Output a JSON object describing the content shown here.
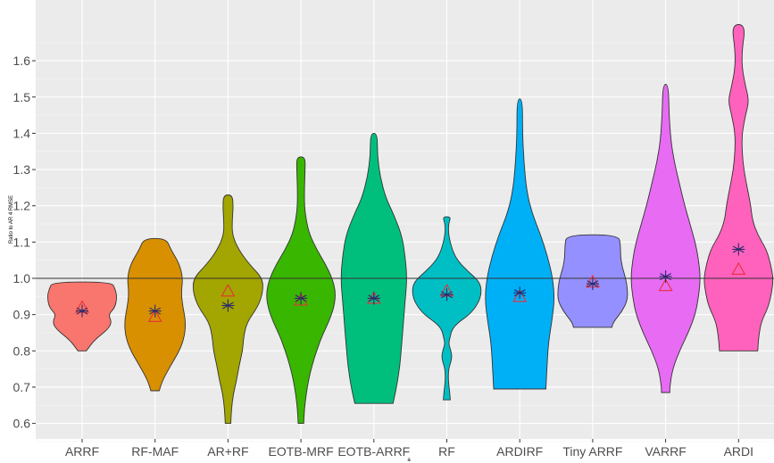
{
  "chart_data": {
    "type": "violin",
    "xlabel": "a",
    "ylabel": "Ratio to AR 4 RMSE",
    "ylim": [
      0.55,
      1.71
    ],
    "yticks": [
      0.6,
      0.7,
      0.8,
      0.9,
      1.0,
      1.1,
      1.2,
      1.3,
      1.4,
      1.5,
      1.6
    ],
    "ytick_labels": [
      "0.6",
      "0.7",
      "0.8",
      "0.9",
      "1.0",
      "1.1",
      "1.2",
      "1.3",
      "1.4",
      "1.5",
      "1.6"
    ],
    "reference_line": 1.0,
    "background": "#ebebeb",
    "grid": true,
    "categories": [
      "ARRF",
      "RF-MAF",
      "AR+RF",
      "EOTB-MRF",
      "EOTB-ARRF",
      "RF",
      "ARDIRF",
      "Tiny ARRF",
      "VARRF",
      "ARDI"
    ],
    "violins": [
      {
        "color": "#f8766d",
        "min": 0.8,
        "max": 0.99,
        "mean": 0.91,
        "median": 0.92,
        "profile": [
          [
            0.8,
            0.12
          ],
          [
            0.83,
            0.35
          ],
          [
            0.86,
            0.75
          ],
          [
            0.88,
            0.85
          ],
          [
            0.9,
            0.75
          ],
          [
            0.92,
            0.95
          ],
          [
            0.95,
            1.0
          ],
          [
            0.97,
            0.95
          ],
          [
            0.99,
            0.85
          ]
        ]
      },
      {
        "color": "#d89000",
        "min": 0.69,
        "max": 1.11,
        "mean": 0.91,
        "median": 0.895,
        "profile": [
          [
            0.69,
            0.12
          ],
          [
            0.72,
            0.22
          ],
          [
            0.76,
            0.45
          ],
          [
            0.8,
            0.7
          ],
          [
            0.84,
            0.85
          ],
          [
            0.88,
            0.88
          ],
          [
            0.92,
            0.8
          ],
          [
            0.96,
            0.75
          ],
          [
            1.0,
            0.8
          ],
          [
            1.04,
            0.7
          ],
          [
            1.08,
            0.45
          ],
          [
            1.11,
            0.32
          ]
        ]
      },
      {
        "color": "#a3a500",
        "min": 0.6,
        "max": 1.23,
        "mean": 0.925,
        "median": 0.965,
        "profile": [
          [
            0.6,
            0.08
          ],
          [
            0.64,
            0.1
          ],
          [
            0.68,
            0.15
          ],
          [
            0.72,
            0.25
          ],
          [
            0.76,
            0.32
          ],
          [
            0.8,
            0.42
          ],
          [
            0.84,
            0.45
          ],
          [
            0.88,
            0.55
          ],
          [
            0.92,
            0.85
          ],
          [
            0.96,
            1.0
          ],
          [
            1.0,
            1.0
          ],
          [
            1.04,
            0.6
          ],
          [
            1.08,
            0.3
          ],
          [
            1.12,
            0.12
          ],
          [
            1.16,
            0.12
          ],
          [
            1.2,
            0.15
          ],
          [
            1.23,
            0.12
          ]
        ]
      },
      {
        "color": "#39b600",
        "min": 0.6,
        "max": 1.335,
        "mean": 0.945,
        "median": 0.94,
        "profile": [
          [
            0.6,
            0.08
          ],
          [
            0.64,
            0.1
          ],
          [
            0.68,
            0.15
          ],
          [
            0.72,
            0.22
          ],
          [
            0.76,
            0.32
          ],
          [
            0.8,
            0.45
          ],
          [
            0.84,
            0.6
          ],
          [
            0.88,
            0.8
          ],
          [
            0.92,
            0.95
          ],
          [
            0.96,
            1.0
          ],
          [
            1.0,
            0.9
          ],
          [
            1.04,
            0.7
          ],
          [
            1.08,
            0.45
          ],
          [
            1.12,
            0.25
          ],
          [
            1.16,
            0.15
          ],
          [
            1.2,
            0.1
          ],
          [
            1.25,
            0.1
          ],
          [
            1.3,
            0.12
          ],
          [
            1.335,
            0.12
          ]
        ]
      },
      {
        "color": "#00bf7d",
        "min": 0.655,
        "max": 1.4,
        "mean": 0.945,
        "median": 0.945,
        "profile": [
          [
            0.655,
            0.55
          ],
          [
            0.7,
            0.65
          ],
          [
            0.76,
            0.75
          ],
          [
            0.82,
            0.8
          ],
          [
            0.88,
            0.85
          ],
          [
            0.94,
            0.9
          ],
          [
            1.0,
            0.95
          ],
          [
            1.06,
            0.9
          ],
          [
            1.12,
            0.8
          ],
          [
            1.18,
            0.55
          ],
          [
            1.22,
            0.35
          ],
          [
            1.28,
            0.18
          ],
          [
            1.34,
            0.1
          ],
          [
            1.4,
            0.1
          ]
        ]
      },
      {
        "color": "#00bfc4",
        "min": 0.665,
        "max": 1.17,
        "mean": 0.955,
        "median": 0.965,
        "profile": [
          [
            0.665,
            0.1
          ],
          [
            0.69,
            0.08
          ],
          [
            0.72,
            0.04
          ],
          [
            0.75,
            0.05
          ],
          [
            0.78,
            0.15
          ],
          [
            0.8,
            0.12
          ],
          [
            0.82,
            0.05
          ],
          [
            0.84,
            0.1
          ],
          [
            0.86,
            0.15
          ],
          [
            0.88,
            0.35
          ],
          [
            0.9,
            0.65
          ],
          [
            0.93,
            0.9
          ],
          [
            0.96,
            1.0
          ],
          [
            0.99,
            0.95
          ],
          [
            1.02,
            0.6
          ],
          [
            1.05,
            0.3
          ],
          [
            1.08,
            0.15
          ],
          [
            1.12,
            0.05
          ],
          [
            1.15,
            0.05
          ],
          [
            1.17,
            0.12
          ]
        ]
      },
      {
        "color": "#00b0f6",
        "min": 0.695,
        "max": 1.495,
        "mean": 0.96,
        "median": 0.95,
        "profile": [
          [
            0.695,
            0.75
          ],
          [
            0.75,
            0.78
          ],
          [
            0.82,
            0.82
          ],
          [
            0.88,
            0.92
          ],
          [
            0.94,
            1.0
          ],
          [
            1.0,
            0.95
          ],
          [
            1.06,
            0.8
          ],
          [
            1.12,
            0.6
          ],
          [
            1.18,
            0.35
          ],
          [
            1.24,
            0.2
          ],
          [
            1.32,
            0.12
          ],
          [
            1.4,
            0.08
          ],
          [
            1.495,
            0.08
          ]
        ]
      },
      {
        "color": "#9590ff",
        "min": 0.865,
        "max": 1.12,
        "mean": 0.985,
        "median": 0.99,
        "profile": [
          [
            0.865,
            0.55
          ],
          [
            0.88,
            0.6
          ],
          [
            0.91,
            0.85
          ],
          [
            0.94,
            1.0
          ],
          [
            0.97,
            1.0
          ],
          [
            1.0,
            0.95
          ],
          [
            1.03,
            0.85
          ],
          [
            1.06,
            0.8
          ],
          [
            1.09,
            0.8
          ],
          [
            1.12,
            0.75
          ]
        ]
      },
      {
        "color": "#e76bf3",
        "min": 0.685,
        "max": 1.535,
        "mean": 1.005,
        "median": 0.98,
        "profile": [
          [
            0.685,
            0.12
          ],
          [
            0.7,
            0.12
          ],
          [
            0.75,
            0.2
          ],
          [
            0.8,
            0.4
          ],
          [
            0.85,
            0.65
          ],
          [
            0.9,
            0.85
          ],
          [
            0.95,
            0.95
          ],
          [
            1.0,
            1.0
          ],
          [
            1.05,
            0.95
          ],
          [
            1.1,
            0.85
          ],
          [
            1.15,
            0.7
          ],
          [
            1.2,
            0.55
          ],
          [
            1.26,
            0.4
          ],
          [
            1.32,
            0.25
          ],
          [
            1.38,
            0.15
          ],
          [
            1.45,
            0.1
          ],
          [
            1.535,
            0.08
          ]
        ]
      },
      {
        "color": "#ff62bc",
        "min": 0.8,
        "max": 1.7,
        "mean": 1.08,
        "median": 1.025,
        "profile": [
          [
            0.8,
            0.55
          ],
          [
            0.84,
            0.58
          ],
          [
            0.88,
            0.65
          ],
          [
            0.92,
            0.85
          ],
          [
            0.96,
            0.95
          ],
          [
            1.0,
            1.0
          ],
          [
            1.04,
            0.92
          ],
          [
            1.08,
            0.8
          ],
          [
            1.12,
            0.55
          ],
          [
            1.16,
            0.4
          ],
          [
            1.2,
            0.35
          ],
          [
            1.25,
            0.25
          ],
          [
            1.3,
            0.15
          ],
          [
            1.35,
            0.1
          ],
          [
            1.4,
            0.1
          ],
          [
            1.45,
            0.2
          ],
          [
            1.49,
            0.3
          ],
          [
            1.53,
            0.2
          ],
          [
            1.58,
            0.1
          ],
          [
            1.63,
            0.1
          ],
          [
            1.7,
            0.2
          ]
        ]
      }
    ]
  }
}
